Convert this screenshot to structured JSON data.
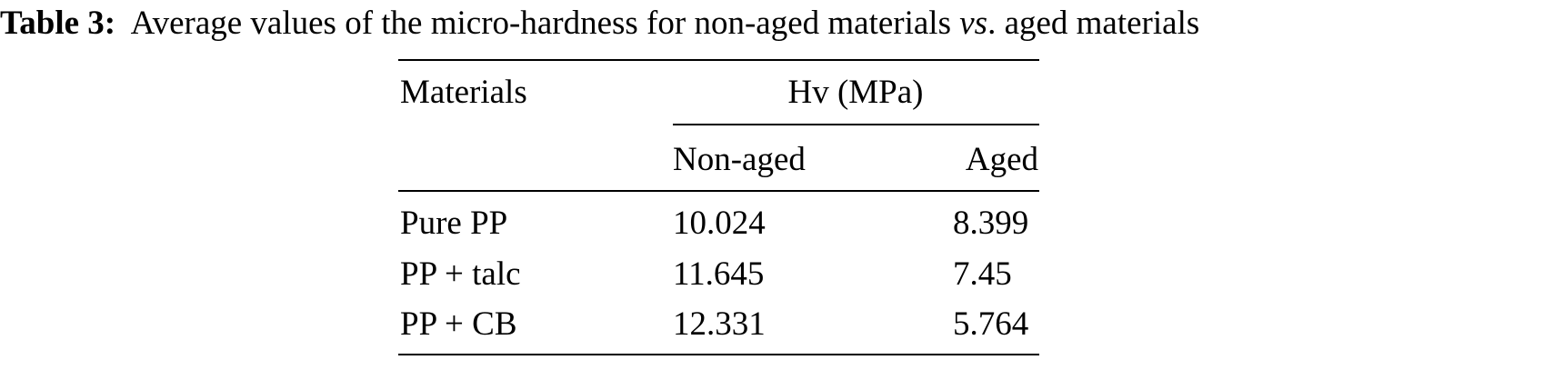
{
  "caption": {
    "label": "Table 3:",
    "text_before": "Average values of the micro-hardness for non-aged materials ",
    "italic": "vs",
    "text_after": ". aged materials"
  },
  "table": {
    "header": {
      "materials": "Materials",
      "group": "Hv (MPa)",
      "non_aged": "Non-aged",
      "aged": "Aged"
    },
    "rows": [
      {
        "material": "Pure PP",
        "non_aged": "10.024",
        "aged": "8.399"
      },
      {
        "material": "PP + talc",
        "non_aged": "11.645",
        "aged": "7.45"
      },
      {
        "material": "PP + CB",
        "non_aged": "12.331",
        "aged": "5.764"
      }
    ]
  }
}
